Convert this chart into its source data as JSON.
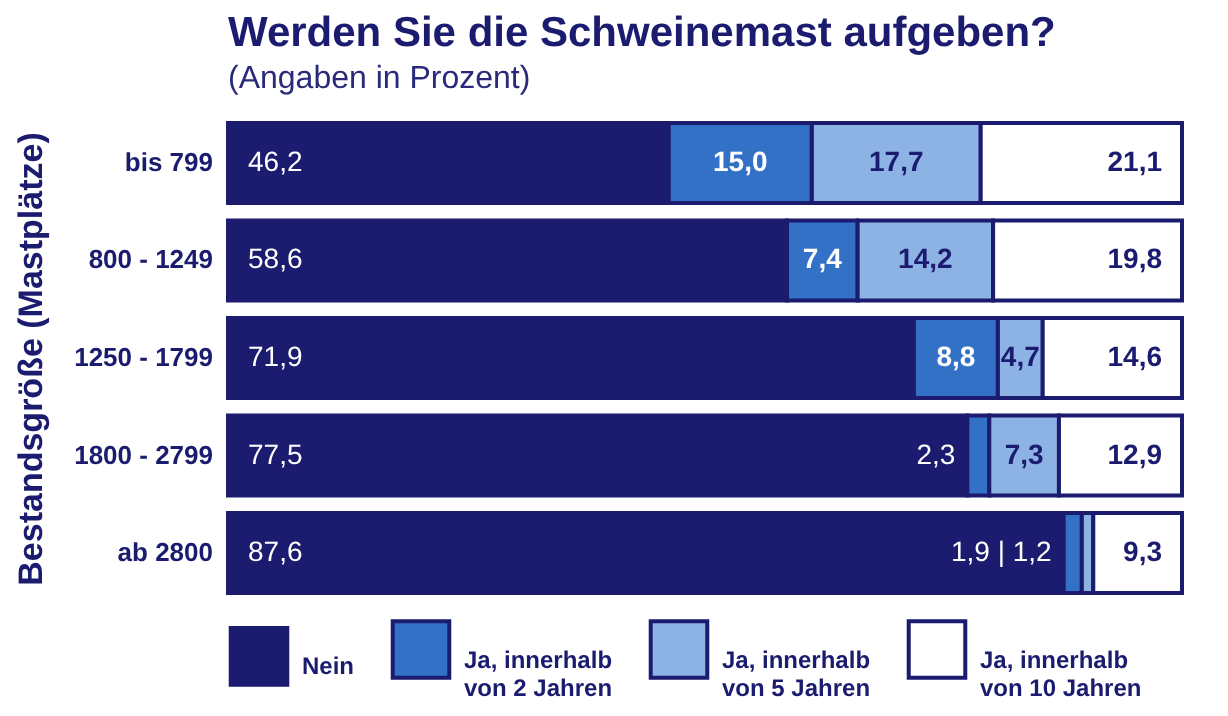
{
  "chart_data": {
    "type": "bar",
    "orientation": "horizontal",
    "stacked": true,
    "title": "Werden Sie die Schweinemast aufgeben?",
    "subtitle": "(Angaben in Prozent)",
    "ylabel": "Bestandsgröße (Mastplätze)",
    "categories": [
      "bis 799",
      "800 - 1249",
      "1250 - 1799",
      "1800 - 2799",
      "ab 2800"
    ],
    "xlim": [
      0,
      100
    ],
    "tick_labels": "y",
    "legend": "bottom",
    "series": [
      {
        "name": "Nein",
        "color": "#1b1b6f",
        "values": [
          46.2,
          58.6,
          71.9,
          77.5,
          87.6
        ],
        "value_labels": [
          "46,2",
          "58,6",
          "71,9",
          "77,5",
          "87,6"
        ]
      },
      {
        "name": "Ja, innerhalb von 2 Jahren",
        "color": "#3271c6",
        "values": [
          15.0,
          7.4,
          8.8,
          2.3,
          1.9
        ],
        "value_labels": [
          "15,0",
          "7,4",
          "8,8",
          "2,3",
          null
        ]
      },
      {
        "name": "Ja, innerhalb von 5 Jahren",
        "color": "#8db3e5",
        "values": [
          17.7,
          14.2,
          4.7,
          7.3,
          1.2
        ],
        "value_labels": [
          "17,7",
          "14,2",
          "4,7",
          "7,3",
          null
        ]
      },
      {
        "name": "Ja, innerhalb von 10 Jahren",
        "color": "#ffffff",
        "values": [
          21.1,
          19.8,
          14.6,
          12.9,
          9.3
        ],
        "value_labels": [
          "21,1",
          "19,8",
          "14,6",
          "12,9",
          "9,3"
        ]
      }
    ],
    "annotations": [
      {
        "text": "1,9 | 1,2",
        "x": 87.6,
        "y": "ab 2800"
      }
    ]
  }
}
